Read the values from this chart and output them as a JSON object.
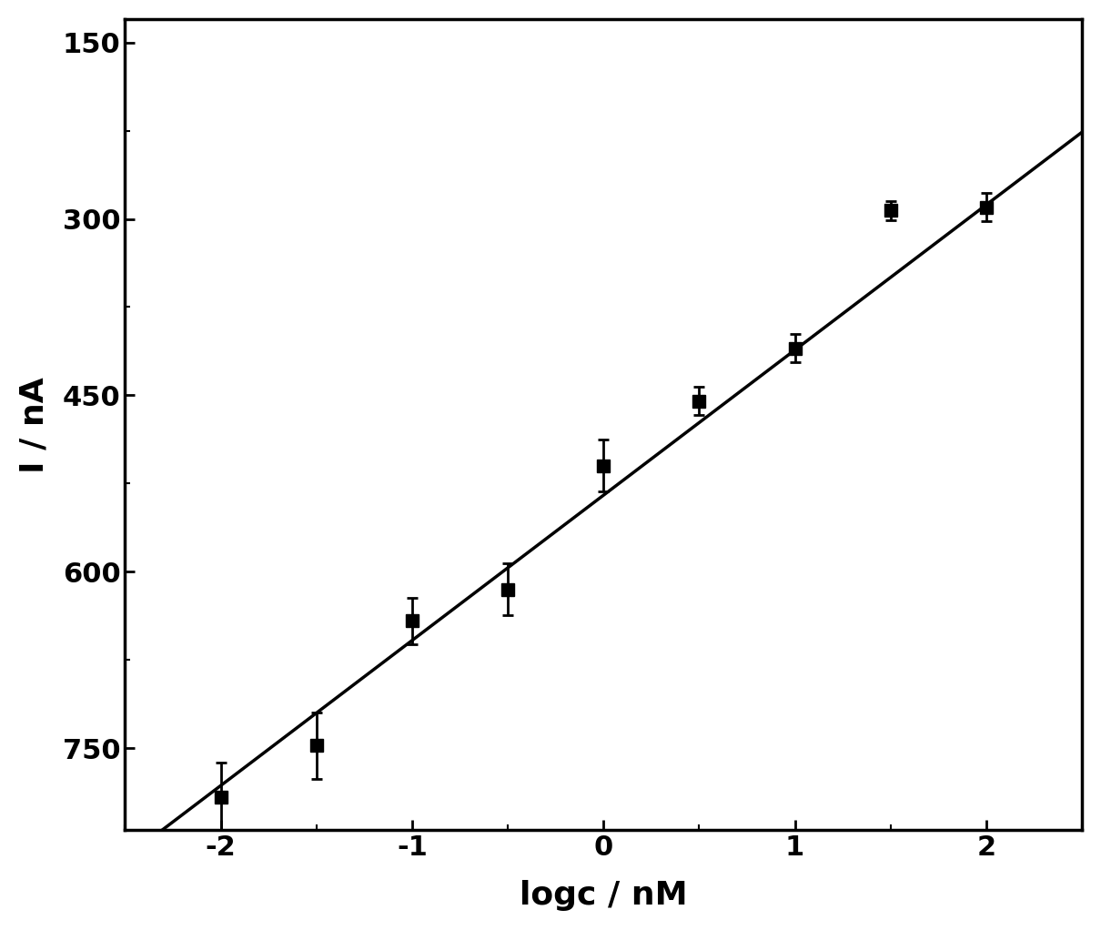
{
  "x_data": [
    -2,
    -1.5,
    -1,
    -0.5,
    0,
    0.5,
    1,
    1.5,
    2
  ],
  "y_data": [
    792,
    748,
    642,
    615,
    510,
    455,
    410,
    293,
    290
  ],
  "y_err": [
    30,
    28,
    20,
    22,
    22,
    12,
    12,
    8,
    12
  ],
  "xlabel": "logc / nM",
  "ylabel": "I / nA",
  "xlim": [
    -2.5,
    2.5
  ],
  "ylim": [
    820,
    130
  ],
  "xticks": [
    -2,
    -1,
    0,
    1,
    2
  ],
  "yticks": [
    150,
    300,
    450,
    600,
    750
  ],
  "marker_color": "black",
  "line_color": "black",
  "background_color": "white",
  "marker_size": 10,
  "line_width": 2.5,
  "xlabel_fontsize": 26,
  "ylabel_fontsize": 26,
  "tick_fontsize": 22,
  "tick_label_fontweight": "bold",
  "label_fontweight": "bold",
  "fit_slope": -123.5,
  "fit_intercept": 535
}
